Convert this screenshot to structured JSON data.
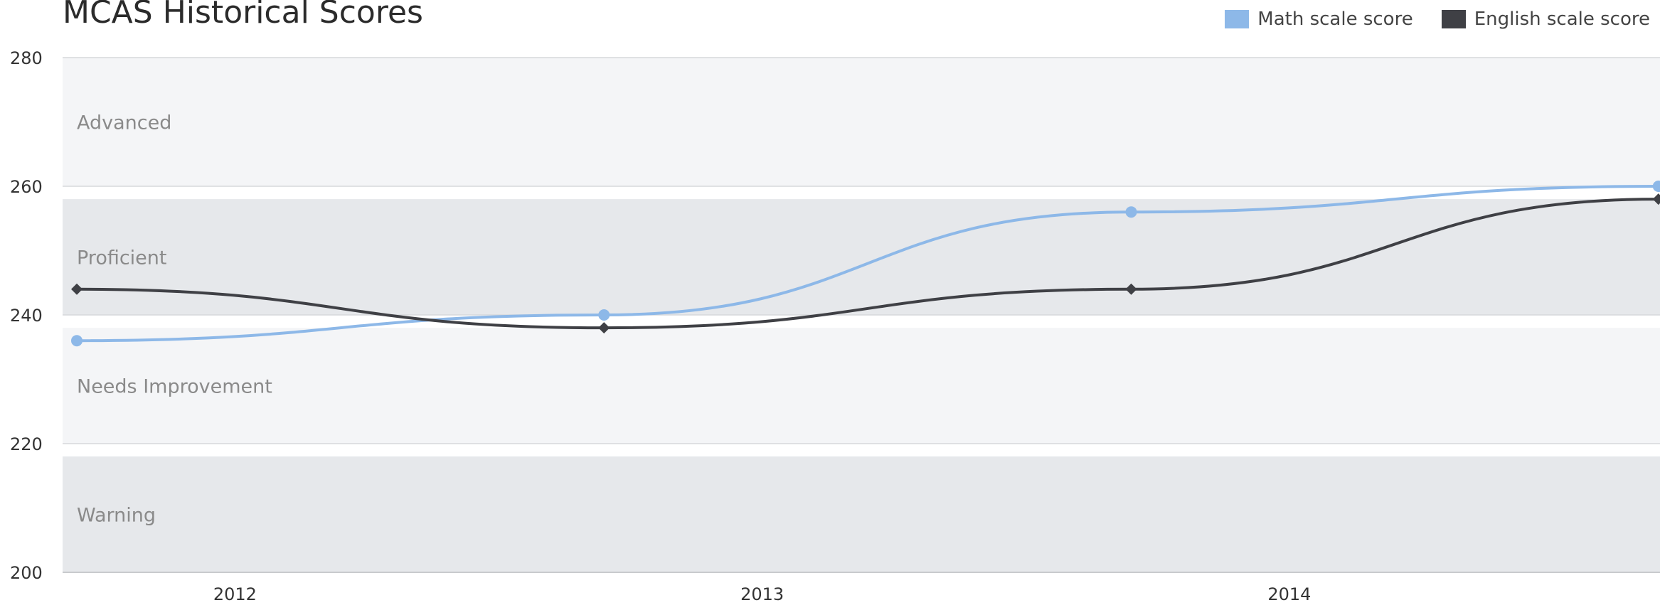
{
  "chart_data": {
    "type": "line",
    "title": "MCAS Historical Scores",
    "xlabel": "",
    "ylabel": "",
    "ylim": [
      200,
      280
    ],
    "yticks": [
      200,
      220,
      240,
      260,
      280
    ],
    "xticks": [
      "2012",
      "2013",
      "2014"
    ],
    "x_points": [
      2011.7,
      2012.7,
      2013.7,
      2014.7
    ],
    "bands": [
      {
        "label": "Advanced",
        "from": 260,
        "to": 280,
        "color": "#f4f5f7"
      },
      {
        "label": "Proficient",
        "from": 240,
        "to": 258,
        "color": "#e6e8eb"
      },
      {
        "label": "Needs Improvement",
        "from": 220,
        "to": 238,
        "color": "#f4f5f7"
      },
      {
        "label": "Warning",
        "from": 200,
        "to": 218,
        "color": "#e6e8eb"
      }
    ],
    "series": [
      {
        "name": "Math scale score",
        "color": "#8db8e8",
        "marker": "circle",
        "values": [
          236,
          240,
          256,
          260
        ]
      },
      {
        "name": "English scale score",
        "color": "#3f4045",
        "marker": "diamond",
        "values": [
          244,
          238,
          244,
          258
        ]
      }
    ],
    "legend": "top-right",
    "grid": true
  }
}
